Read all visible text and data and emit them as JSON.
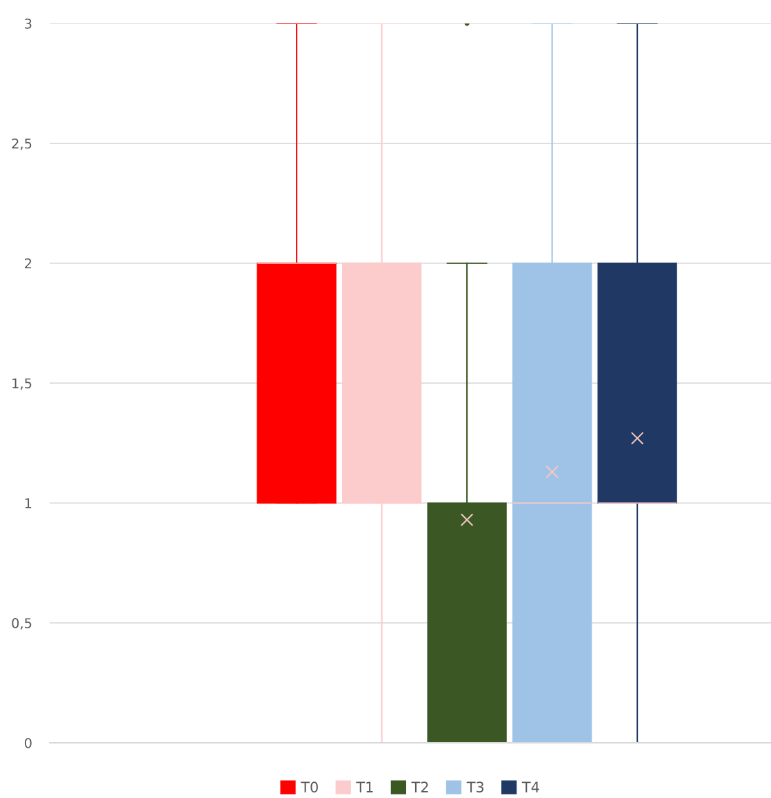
{
  "chart_data": {
    "type": "box",
    "categories": [
      null
    ],
    "ylim": [
      0,
      3
    ],
    "yticks": [
      0,
      {
        "value": 0.5,
        "label": "0,5"
      },
      1,
      {
        "value": 1.5,
        "label": "1,5"
      },
      2,
      {
        "value": 2.5,
        "label": "2,5"
      },
      3
    ],
    "grid": "y",
    "legend": "bottom",
    "marker": "cross",
    "series": [
      {
        "name": "T0",
        "color": "#ff0000",
        "boxes": [
          {
            "low": 1,
            "q1": 1,
            "median": 2,
            "q3": 2,
            "high": 3
          }
        ]
      },
      {
        "name": "T1",
        "color": "#fccbcb",
        "boxes": [
          {
            "low": 0,
            "q1": 1,
            "median": 1,
            "q3": 2,
            "high": 3
          }
        ]
      },
      {
        "name": "T2",
        "color": "#3a5724",
        "boxes": [
          {
            "low": 0,
            "q1": 0,
            "median": 0,
            "q3": 1,
            "high": 2,
            "mean": 0.93,
            "outliers": [
              3
            ]
          }
        ]
      },
      {
        "name": "T3",
        "color": "#9fc3e6",
        "boxes": [
          {
            "low": 0,
            "q1": 0,
            "median": 1,
            "q3": 2,
            "high": 3,
            "mean": 1.13
          }
        ]
      },
      {
        "name": "T4",
        "color": "#203864",
        "boxes": [
          {
            "low": 0,
            "q1": 1,
            "median": 1,
            "q3": 2,
            "high": 3,
            "mean": 1.27
          }
        ]
      }
    ]
  }
}
